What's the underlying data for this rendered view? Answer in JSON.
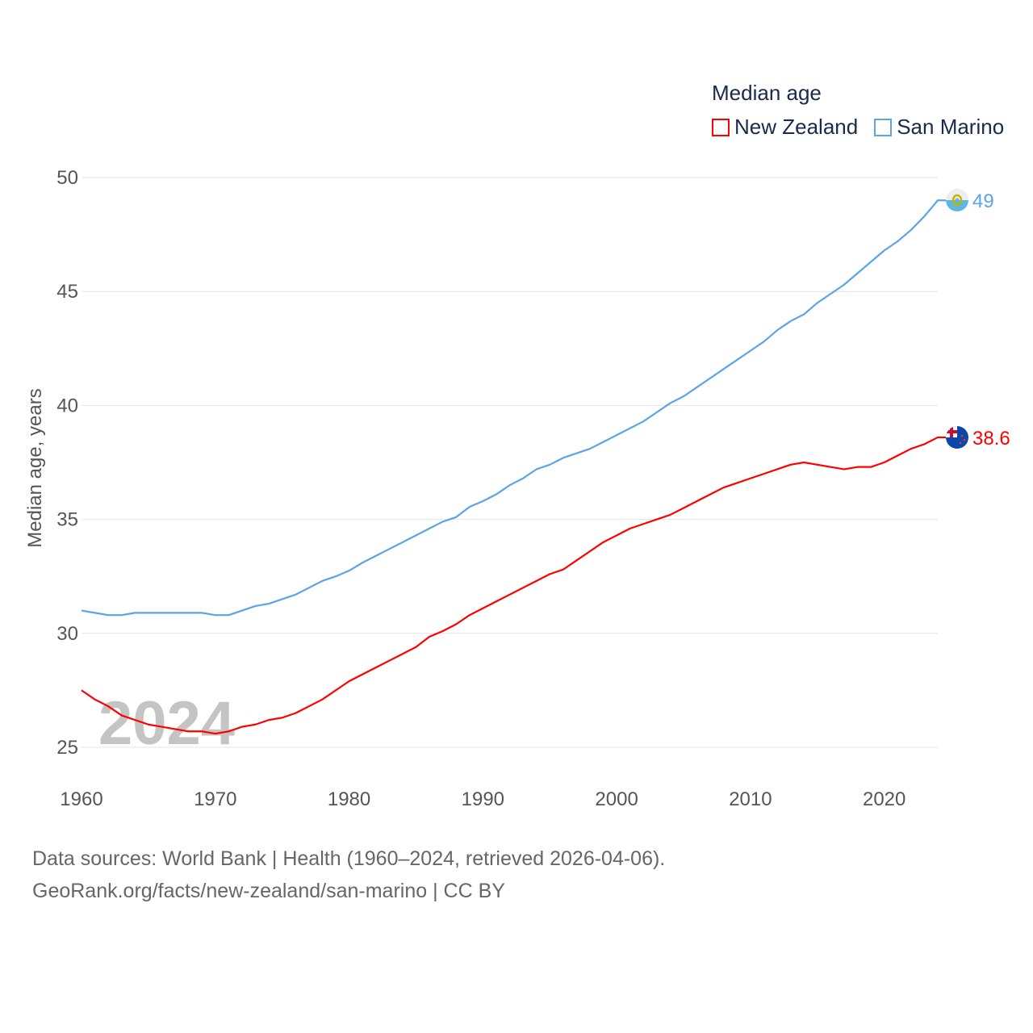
{
  "chart_data": {
    "type": "line",
    "title": "Median age",
    "xlabel": "",
    "ylabel": "Median age, years",
    "xlim": [
      1960,
      2024
    ],
    "ylim": [
      25,
      50
    ],
    "yticks": [
      "25",
      "30",
      "35",
      "40",
      "45",
      "50"
    ],
    "xticks": [
      "1960",
      "1970",
      "1980",
      "1990",
      "2000",
      "2010",
      "2020"
    ],
    "grid": true,
    "legend_placement": "top-right",
    "watermark_year": "2024",
    "x": [
      1960,
      1961,
      1962,
      1963,
      1964,
      1965,
      1966,
      1967,
      1968,
      1969,
      1970,
      1971,
      1972,
      1973,
      1974,
      1975,
      1976,
      1977,
      1978,
      1979,
      1980,
      1981,
      1982,
      1983,
      1984,
      1985,
      1986,
      1987,
      1988,
      1989,
      1990,
      1991,
      1992,
      1993,
      1994,
      1995,
      1996,
      1997,
      1998,
      1999,
      2000,
      2001,
      2002,
      2003,
      2004,
      2005,
      2006,
      2007,
      2008,
      2009,
      2010,
      2011,
      2012,
      2013,
      2014,
      2015,
      2016,
      2017,
      2018,
      2019,
      2020,
      2021,
      2022,
      2023,
      2024
    ],
    "series": [
      {
        "name": "New Zealand",
        "color": "#ff0000",
        "end_label": "38.6",
        "values": [
          27.5,
          27.1,
          26.8,
          26.4,
          26.2,
          26.0,
          25.9,
          25.8,
          25.7,
          25.7,
          25.6,
          25.7,
          25.9,
          26.0,
          26.2,
          26.3,
          26.5,
          26.8,
          27.1,
          27.5,
          27.9,
          28.2,
          28.5,
          28.8,
          29.1,
          29.4,
          29.85,
          30.1,
          30.4,
          30.8,
          31.1,
          31.4,
          31.7,
          32.0,
          32.3,
          32.6,
          32.8,
          33.2,
          33.6,
          34.0,
          34.3,
          34.6,
          34.8,
          35.0,
          35.2,
          35.5,
          35.8,
          36.1,
          36.4,
          36.6,
          36.8,
          37.0,
          37.2,
          37.4,
          37.5,
          37.4,
          37.3,
          37.2,
          37.3,
          37.3,
          37.5,
          37.8,
          38.1,
          38.3,
          38.6
        ]
      },
      {
        "name": "San Marino",
        "color": "#5ba4e8",
        "end_label": "49",
        "values": [
          31.0,
          30.9,
          30.8,
          30.8,
          30.9,
          30.9,
          30.9,
          30.9,
          30.9,
          30.9,
          30.8,
          30.8,
          31.0,
          31.2,
          31.3,
          31.5,
          31.7,
          32.0,
          32.3,
          32.5,
          32.75,
          33.1,
          33.4,
          33.7,
          34.0,
          34.3,
          34.6,
          34.9,
          35.1,
          35.55,
          35.8,
          36.1,
          36.5,
          36.8,
          37.2,
          37.4,
          37.7,
          37.9,
          38.1,
          38.4,
          38.7,
          39.0,
          39.3,
          39.7,
          40.1,
          40.4,
          40.8,
          41.2,
          41.6,
          42.0,
          42.4,
          42.8,
          43.3,
          43.7,
          44.0,
          44.5,
          44.9,
          45.3,
          45.8,
          46.3,
          46.8,
          47.2,
          47.7,
          48.3,
          49.0
        ]
      }
    ]
  },
  "footer": {
    "line1": "Data sources: World Bank | Health (1960–2024, retrieved 2026-04-06).",
    "line2": "GeoRank.org/facts/new-zealand/san-marino | CC BY"
  }
}
